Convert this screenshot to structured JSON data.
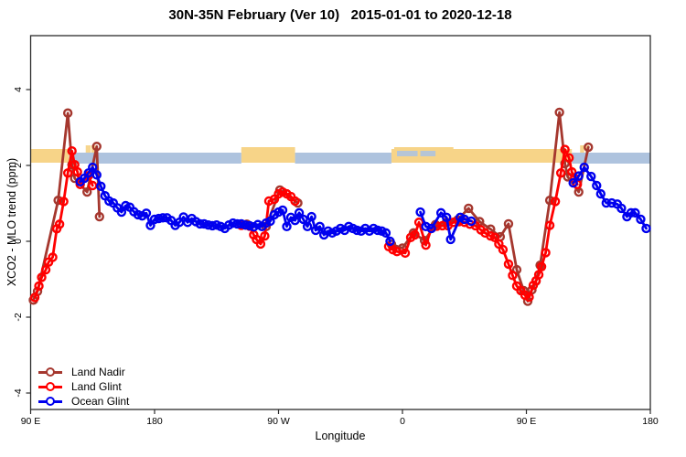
{
  "title": "30N-35N February (Ver 10)   2015-01-01 to 2020-12-18",
  "chart_data": {
    "type": "line",
    "title": "30N-35N February (Ver 10)   2015-01-01 to 2020-12-18",
    "xlabel": "Longitude",
    "ylabel": "XCO2 - MLO trend (ppm)",
    "x_axis_note": "x axis spans 450 deg eastward from 90E (90E-180-90W-0-90E-180); coordinate >180 means longitude-360",
    "x_ticks": [
      {
        "axis": 90,
        "label": "90 E"
      },
      {
        "axis": 180,
        "label": "180"
      },
      {
        "axis": 270,
        "label": "90 W"
      },
      {
        "axis": 360,
        "label": "0"
      },
      {
        "axis": 450,
        "label": "90 E"
      },
      {
        "axis": 540,
        "label": "180"
      }
    ],
    "y_ticks": [
      {
        "value": -4,
        "label": "-4"
      },
      {
        "value": -2,
        "label": "-2"
      },
      {
        "value": 0,
        "label": "0"
      },
      {
        "value": 2,
        "label": "2"
      },
      {
        "value": 4,
        "label": "4"
      }
    ],
    "y_range": [
      -4.4,
      5.4
    ],
    "legend_position": "bottom-left",
    "grid": false,
    "series": [
      {
        "name": "Land Nadir",
        "color": "#A5372E",
        "marker": "open-circle",
        "segments": [
          [
            [
              92,
              -1.55
            ],
            [
              95,
              -1.32
            ],
            [
              110,
              1.08
            ],
            [
              117,
              3.38
            ],
            [
              120,
              2.02
            ],
            [
              122,
              1.66
            ],
            [
              131,
              1.3
            ],
            [
              138,
              2.5
            ],
            [
              140,
              0.65
            ]
          ],
          [
            [
              247,
              0.45
            ],
            [
              261,
              0.39
            ],
            [
              271,
              1.35
            ],
            [
              284,
              1.01
            ]
          ],
          [
            [
              352,
              -0.08
            ],
            [
              360,
              -0.18
            ],
            [
              368,
              0.22
            ],
            [
              376,
              0.02
            ],
            [
              384,
              0.44
            ],
            [
              392,
              0.5
            ],
            [
              400,
              0.56
            ],
            [
              408,
              0.87
            ],
            [
              416,
              0.52
            ],
            [
              424,
              0.32
            ],
            [
              431,
              0.12
            ],
            [
              437,
              0.46
            ],
            [
              443,
              -0.75
            ],
            [
              448,
              -1.3
            ],
            [
              451,
              -1.58
            ],
            [
              454,
              -1.28
            ],
            [
              457,
              -1.05
            ],
            [
              460,
              -0.63
            ],
            [
              467,
              1.08
            ],
            [
              474,
              3.4
            ],
            [
              478,
              2.05
            ],
            [
              480,
              1.7
            ],
            [
              488,
              1.3
            ],
            [
              495,
              2.48
            ]
          ]
        ]
      },
      {
        "name": "Land Glint",
        "color": "#FF0000",
        "marker": "open-circle",
        "segments": [
          [
            [
              93,
              -1.48
            ],
            [
              96,
              -1.18
            ],
            [
              98,
              -0.95
            ],
            [
              101,
              -0.75
            ],
            [
              103,
              -0.55
            ],
            [
              106,
              -0.42
            ],
            [
              109,
              0.33
            ],
            [
              111,
              0.45
            ],
            [
              114,
              1.05
            ],
            [
              117,
              1.8
            ],
            [
              120,
              2.38
            ],
            [
              122,
              2.02
            ],
            [
              124,
              1.83
            ],
            [
              126,
              1.5
            ],
            [
              132,
              1.73
            ],
            [
              135,
              1.47
            ]
          ],
          [
            [
              243,
              0.42
            ],
            [
              246,
              0.43
            ],
            [
              249,
              0.4
            ],
            [
              252,
              0.17
            ],
            [
              254,
              0.05
            ],
            [
              257,
              -0.07
            ],
            [
              260,
              0.14
            ],
            [
              263,
              1.06
            ],
            [
              267,
              1.11
            ],
            [
              270,
              1.25
            ],
            [
              273,
              1.3
            ],
            [
              276,
              1.25
            ],
            [
              279,
              1.18
            ],
            [
              282,
              1.06
            ]
          ],
          [
            [
              350,
              -0.14
            ],
            [
              353,
              -0.22
            ],
            [
              356,
              -0.27
            ],
            [
              362,
              -0.31
            ],
            [
              366,
              0.1
            ],
            [
              369,
              0.17
            ],
            [
              372,
              0.5
            ],
            [
              377,
              -0.1
            ],
            [
              381,
              0.34
            ],
            [
              385,
              0.4
            ],
            [
              389,
              0.41
            ],
            [
              393,
              0.41
            ],
            [
              397,
              0.5
            ],
            [
              401,
              0.52
            ],
            [
              405,
              0.5
            ],
            [
              409,
              0.45
            ],
            [
              413,
              0.41
            ],
            [
              417,
              0.3
            ],
            [
              420,
              0.22
            ],
            [
              424,
              0.14
            ],
            [
              427,
              0.1
            ],
            [
              430,
              -0.07
            ],
            [
              433,
              -0.22
            ],
            [
              437,
              -0.6
            ],
            [
              440,
              -0.9
            ],
            [
              443,
              -1.18
            ],
            [
              446,
              -1.3
            ],
            [
              449,
              -1.42
            ],
            [
              452,
              -1.47
            ],
            [
              455,
              -1.16
            ],
            [
              457,
              -1.04
            ],
            [
              459,
              -0.88
            ],
            [
              461,
              -0.67
            ],
            [
              464,
              -0.3
            ],
            [
              467,
              0.42
            ],
            [
              471,
              1.05
            ],
            [
              475,
              1.8
            ],
            [
              478,
              2.42
            ],
            [
              481,
              2.2
            ],
            [
              483,
              1.83
            ],
            [
              485,
              1.66
            ],
            [
              487,
              1.5
            ]
          ]
        ]
      },
      {
        "name": "Ocean Glint",
        "color": "#0000EE",
        "marker": "open-circle",
        "segments": [
          [
            [
              126,
              1.57
            ],
            [
              129,
              1.66
            ],
            [
              132,
              1.8
            ],
            [
              135,
              1.95
            ],
            [
              138,
              1.75
            ],
            [
              141,
              1.45
            ],
            [
              144,
              1.2
            ],
            [
              147,
              1.06
            ],
            [
              150,
              1.01
            ],
            [
              153,
              0.88
            ],
            [
              156,
              0.77
            ],
            [
              159,
              0.94
            ],
            [
              162,
              0.9
            ],
            [
              165,
              0.78
            ],
            [
              168,
              0.7
            ],
            [
              171,
              0.67
            ],
            [
              174,
              0.74
            ],
            [
              177,
              0.42
            ],
            [
              180,
              0.58
            ],
            [
              183,
              0.6
            ],
            [
              186,
              0.62
            ],
            [
              189,
              0.62
            ],
            [
              192,
              0.55
            ],
            [
              195,
              0.42
            ],
            [
              198,
              0.5
            ],
            [
              201,
              0.64
            ],
            [
              204,
              0.5
            ],
            [
              207,
              0.6
            ],
            [
              210,
              0.52
            ],
            [
              213,
              0.46
            ],
            [
              216,
              0.46
            ],
            [
              219,
              0.43
            ],
            [
              222,
              0.41
            ],
            [
              225,
              0.43
            ],
            [
              228,
              0.39
            ],
            [
              231,
              0.34
            ],
            [
              234,
              0.43
            ],
            [
              237,
              0.48
            ],
            [
              240,
              0.46
            ],
            [
              243,
              0.46
            ],
            [
              246,
              0.43
            ],
            [
              249,
              0.41
            ],
            [
              252,
              0.38
            ],
            [
              255,
              0.44
            ],
            [
              258,
              0.39
            ],
            [
              261,
              0.48
            ],
            [
              264,
              0.53
            ],
            [
              267,
              0.7
            ],
            [
              270,
              0.77
            ],
            [
              273,
              0.82
            ],
            [
              276,
              0.39
            ],
            [
              279,
              0.63
            ],
            [
              282,
              0.55
            ],
            [
              285,
              0.75
            ],
            [
              288,
              0.58
            ],
            [
              291,
              0.39
            ],
            [
              294,
              0.65
            ],
            [
              297,
              0.29
            ],
            [
              300,
              0.39
            ],
            [
              303,
              0.17
            ],
            [
              306,
              0.27
            ],
            [
              309,
              0.22
            ],
            [
              312,
              0.27
            ],
            [
              315,
              0.34
            ],
            [
              318,
              0.29
            ],
            [
              321,
              0.39
            ],
            [
              324,
              0.34
            ],
            [
              327,
              0.29
            ],
            [
              330,
              0.27
            ],
            [
              333,
              0.34
            ],
            [
              336,
              0.27
            ],
            [
              339,
              0.34
            ],
            [
              342,
              0.29
            ],
            [
              345,
              0.27
            ],
            [
              348,
              0.22
            ],
            [
              351,
              0.0
            ]
          ],
          [
            [
              373,
              0.77
            ],
            [
              377,
              0.39
            ],
            [
              381,
              0.34
            ],
            [
              388,
              0.75
            ],
            [
              392,
              0.63
            ],
            [
              395,
              0.05
            ],
            [
              402,
              0.63
            ],
            [
              405,
              0.58
            ],
            [
              410,
              0.53
            ]
          ],
          [
            [
              484,
              1.54
            ],
            [
              488,
              1.72
            ],
            [
              492,
              1.95
            ],
            [
              497,
              1.71
            ],
            [
              501,
              1.47
            ],
            [
              504,
              1.25
            ],
            [
              508,
              1.01
            ],
            [
              512,
              1.01
            ],
            [
              516,
              0.98
            ],
            [
              519,
              0.87
            ],
            [
              523,
              0.65
            ],
            [
              526,
              0.75
            ],
            [
              529,
              0.75
            ],
            [
              533,
              0.58
            ],
            [
              537,
              0.34
            ]
          ]
        ]
      }
    ],
    "map_band": {
      "description": "land/ocean strip along 30N-35N drawn at y approx 2.0-2.4 ppm",
      "land_color": "#F7D488",
      "ocean_color": "#AEC3DE",
      "land_segments": [
        [
          90,
          118
        ],
        [
          243,
          282
        ],
        [
          352,
          483
        ]
      ],
      "ocean_segments": [
        [
          118,
          243
        ],
        [
          282,
          352
        ],
        [
          483,
          540
        ]
      ],
      "raised_land_segments": [
        [
          243,
          282
        ],
        [
          354,
          397
        ]
      ],
      "island_specks": [
        [
          130,
          133.5
        ],
        [
          134,
          137
        ],
        [
          489,
          492
        ],
        [
          493,
          495.5
        ]
      ],
      "inland_sea_patches": [
        [
          356,
          371
        ],
        [
          373,
          384
        ]
      ]
    }
  }
}
